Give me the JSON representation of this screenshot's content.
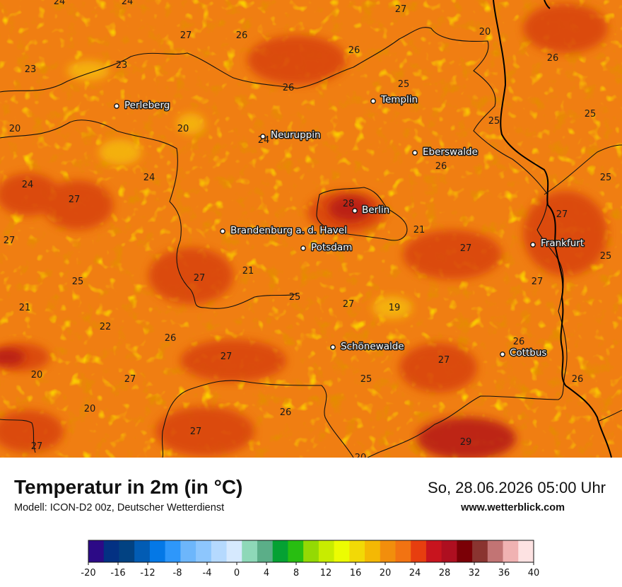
{
  "map": {
    "cities": [
      {
        "name": "Perleberg"
      },
      {
        "name": "Templin"
      },
      {
        "name": "Neuruppin"
      },
      {
        "name": "Eberswalde"
      },
      {
        "name": "Berlin"
      },
      {
        "name": "Brandenburg a. d. Havel"
      },
      {
        "name": "Potsdam"
      },
      {
        "name": "Frankfurt"
      },
      {
        "name": "Schönewalde"
      },
      {
        "name": "Cottbus"
      }
    ],
    "values": [
      "24",
      "24",
      "27",
      "27",
      "26",
      "20",
      "26",
      "23",
      "23",
      "26",
      "26",
      "25",
      "25",
      "20",
      "20",
      "24",
      "24",
      "25",
      "26",
      "25",
      "24",
      "27",
      "27",
      "28",
      "21",
      "27",
      "27",
      "27",
      "25",
      "25",
      "27",
      "21",
      "25",
      "21",
      "27",
      "19",
      "22",
      "26",
      "26",
      "20",
      "27",
      "27",
      "25",
      "27",
      "20",
      "26",
      "26",
      "27",
      "27",
      "29",
      "20"
    ]
  },
  "footer": {
    "title": "Temperatur in 2m (in °C)",
    "model": "Modell: ICON-D2 00z, Deutscher Wetterdienst",
    "datetime": "So, 28.06.2026 05:00 Uhr",
    "website": "www.wetterblick.com"
  },
  "scale": {
    "colors": [
      "#2c0a86",
      "#033183",
      "#024282",
      "#025cb4",
      "#0478e6",
      "#2e97fa",
      "#6db6fb",
      "#8dc6fd",
      "#b5d9fe",
      "#d6e9fe",
      "#8ed8b8",
      "#5bae88",
      "#05a133",
      "#28be11",
      "#94d904",
      "#c8ec00",
      "#ecfc02",
      "#f2d906",
      "#f4b804",
      "#f28e0c",
      "#f27312",
      "#e73e0f",
      "#c8141e",
      "#ae0f20",
      "#7b0006",
      "#8a3430",
      "#c27474",
      "#f0b2b2",
      "#fde2e2"
    ],
    "ticks": [
      "-20",
      "-16",
      "-12",
      "-8",
      "-4",
      "0",
      "4",
      "8",
      "12",
      "16",
      "20",
      "24",
      "28",
      "32",
      "36",
      "40"
    ]
  }
}
